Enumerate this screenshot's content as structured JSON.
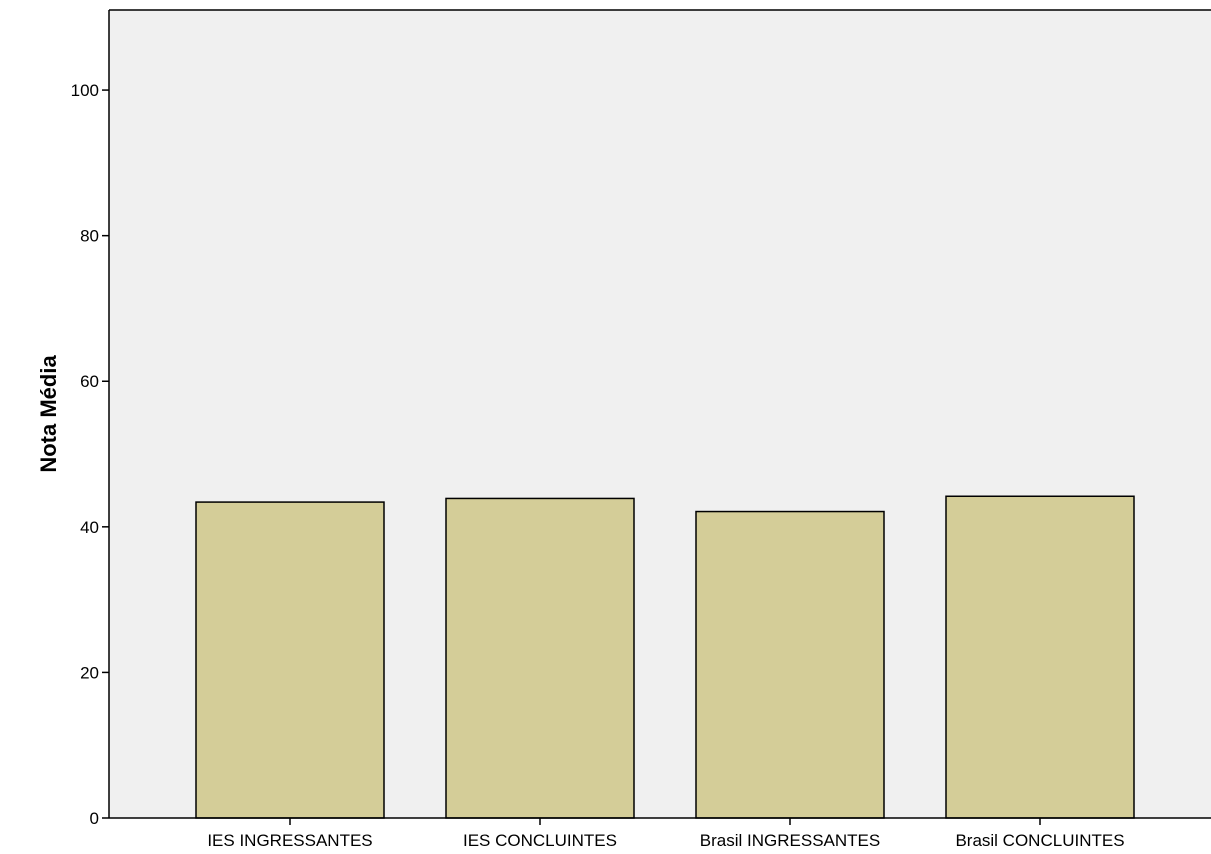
{
  "chart_data": {
    "type": "bar",
    "title": "",
    "xlabel": "",
    "ylabel": "Nota Média",
    "categories": [
      "IES INGRESSANTES",
      "IES CONCLUINTES",
      "Brasil INGRESSANTES",
      "Brasil CONCLUINTES"
    ],
    "values": [
      43.4,
      43.9,
      42.1,
      44.2
    ],
    "yticks": [
      0,
      20,
      40,
      60,
      80,
      100
    ],
    "ylim": [
      0,
      111
    ],
    "grid": false,
    "legend": "none",
    "colors": {
      "bar_fill": "#d4cd98",
      "bar_stroke": "#000000",
      "plot_background": "#f0f0f0",
      "axis": "#000000"
    }
  }
}
